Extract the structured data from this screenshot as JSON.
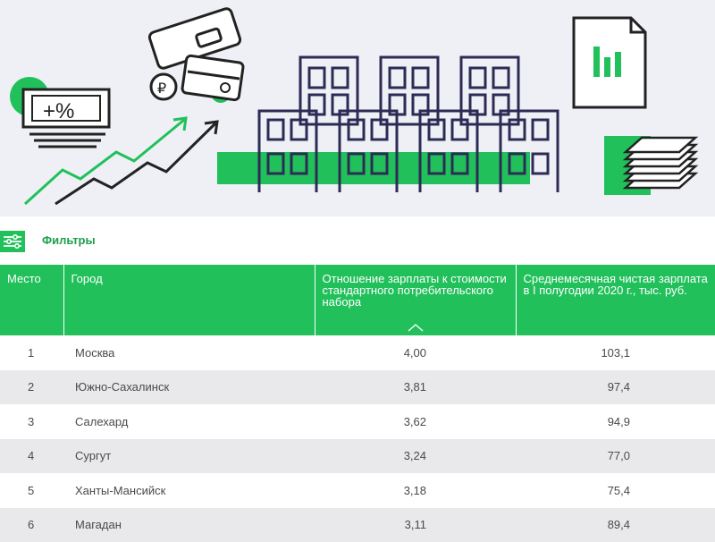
{
  "banner": {
    "money_label": "+%",
    "accent_color": "#21c05b"
  },
  "filters": {
    "label": "Фильтры"
  },
  "table": {
    "headers": [
      "Место",
      "Город",
      "Отношение зарплаты к стоимости стандартного потребительского набора",
      "Среднемесячная чистая зарплата в I полугодии 2020 г., тыс. руб."
    ],
    "rows": [
      {
        "rank": "1",
        "city": "Москва",
        "ratio": "4,00",
        "salary": "103,1"
      },
      {
        "rank": "2",
        "city": "Южно-Сахалинск",
        "ratio": "3,81",
        "salary": "97,4"
      },
      {
        "rank": "3",
        "city": "Салехард",
        "ratio": "3,62",
        "salary": "94,9"
      },
      {
        "rank": "4",
        "city": "Сургут",
        "ratio": "3,24",
        "salary": "77,0"
      },
      {
        "rank": "5",
        "city": "Ханты-Мансийск",
        "ratio": "3,18",
        "salary": "75,4"
      },
      {
        "rank": "6",
        "city": "Магадан",
        "ratio": "3,11",
        "salary": "89,4"
      }
    ]
  }
}
